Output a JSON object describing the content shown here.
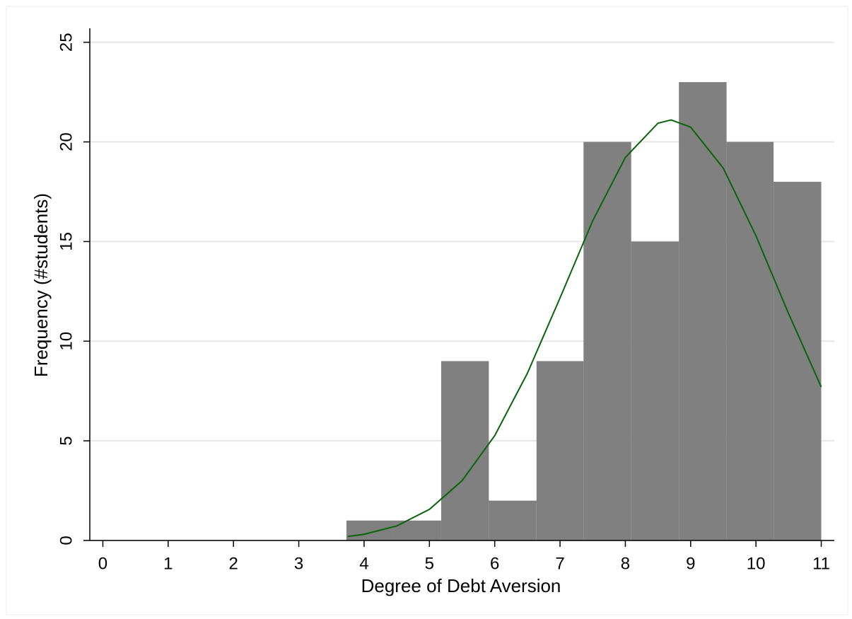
{
  "chart_data": {
    "type": "histogram",
    "xlabel": "Degree of Debt Aversion",
    "ylabel": "Frequency (#students)",
    "bins": [
      3.73,
      4.45,
      5.18,
      5.91,
      6.64,
      7.36,
      8.09,
      8.82,
      9.55,
      10.27,
      11
    ],
    "values": [
      1,
      1,
      9,
      2,
      9,
      20,
      15,
      23,
      20,
      18
    ],
    "color": "#808080",
    "overlay": {
      "type": "line",
      "color": "#0b630b",
      "x": [
        3.75,
        4,
        4.5,
        5,
        5.5,
        6,
        6.5,
        7,
        7.5,
        8,
        8.5,
        8.7,
        9,
        9.5,
        10,
        10.5,
        11
      ],
      "values": [
        0.2,
        0.31,
        0.73,
        1.56,
        3.0,
        5.26,
        8.39,
        12.17,
        16.04,
        19.22,
        20.94,
        21.1,
        20.74,
        18.68,
        15.29,
        11.38,
        7.7
      ]
    },
    "xlim": [
      -0.2,
      11.2
    ],
    "ylim": [
      0,
      25.7
    ],
    "xticks": [
      0,
      1,
      2,
      3,
      4,
      5,
      6,
      7,
      8,
      9,
      10,
      11
    ],
    "yticks": [
      0,
      5,
      10,
      15,
      20,
      25
    ],
    "grid": true
  }
}
